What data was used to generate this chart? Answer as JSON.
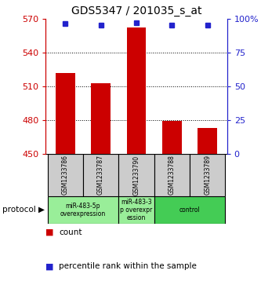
{
  "title": "GDS5347 / 201035_s_at",
  "samples": [
    "GSM1233786",
    "GSM1233787",
    "GSM1233790",
    "GSM1233788",
    "GSM1233789"
  ],
  "counts": [
    522,
    513,
    562,
    479,
    473
  ],
  "percentiles": [
    96,
    95,
    97,
    95,
    95
  ],
  "ymin": 450,
  "ymax": 570,
  "yticks": [
    450,
    480,
    510,
    540,
    570
  ],
  "y2ticks_val": [
    0,
    25,
    50,
    75,
    100
  ],
  "y2ticks_label": [
    "0",
    "25",
    "50",
    "75",
    "100%"
  ],
  "bar_color": "#cc0000",
  "marker_color": "#2222cc",
  "bg_color": "#ffffff",
  "plot_bg": "#ffffff",
  "left_label_color": "#cc0000",
  "right_label_color": "#2222cc",
  "legend_count_label": "count",
  "legend_pct_label": "percentile rank within the sample",
  "sample_box_color": "#cccccc",
  "sample_text_color": "#000000",
  "group_configs": [
    {
      "samples": [
        0,
        1
      ],
      "label": "miR-483-5p\noverexpression",
      "color": "#99ee99"
    },
    {
      "samples": [
        2
      ],
      "label": "miR-483-3\np overexpr\nession",
      "color": "#99ee99"
    },
    {
      "samples": [
        3,
        4
      ],
      "label": "control",
      "color": "#44cc55"
    }
  ]
}
